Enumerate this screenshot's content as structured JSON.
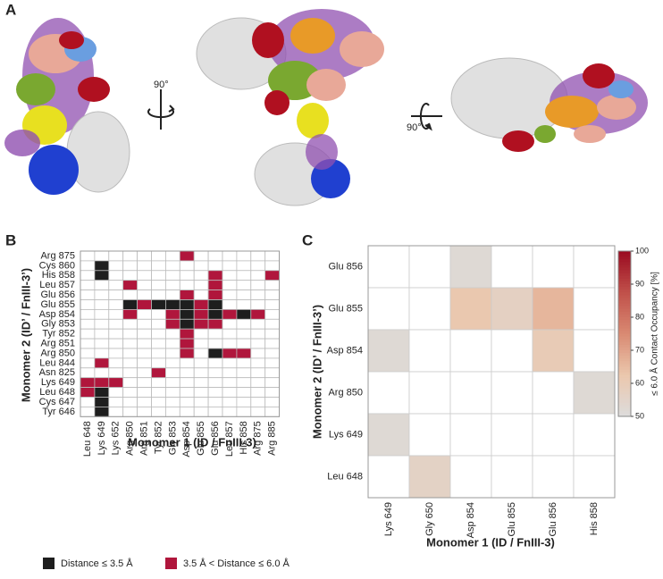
{
  "panel_labels": [
    "A",
    "B",
    "C"
  ],
  "rotation_labels": [
    "90°",
    "90°"
  ],
  "chart_data": [
    {
      "type": "heatmap",
      "x_label": "Monomer 1 (ID / FnIII-3)",
      "y_label": "Monomer 2 (ID’ / FnIII-3’)",
      "x_categories": [
        "Leu 648",
        "Lys 649",
        "Lys 652",
        "Arg 850",
        "Arg 851",
        "Tyr 852",
        "Gly 853",
        "Asp 854",
        "Glu 855",
        "Glu 856",
        "Leu 857",
        "His 858",
        "Arg 875",
        "Arg 885"
      ],
      "y_categories": [
        "Arg 875",
        "Cys 860",
        "His 858",
        "Leu 857",
        "Glu 856",
        "Glu 855",
        "Asp 854",
        "Gly 853",
        "Tyr 852",
        "Arg 851",
        "Arg 850",
        "Leu 844",
        "Asn 825",
        "Lys 649",
        "Leu 648",
        "Cys 647",
        "Tyr 646"
      ],
      "levels": [
        {
          "value": 1,
          "label": "Distance ≤ 3.5 Å",
          "color": "#1e1e1e"
        },
        {
          "value": 2,
          "label": "3.5 Å < Distance ≤ 6.0 Å",
          "color": "#b0163c"
        }
      ],
      "values": [
        [
          0,
          0,
          0,
          0,
          0,
          0,
          0,
          2,
          0,
          0,
          0,
          0,
          0,
          0
        ],
        [
          0,
          1,
          0,
          0,
          0,
          0,
          0,
          0,
          0,
          0,
          0,
          0,
          0,
          0
        ],
        [
          0,
          1,
          0,
          0,
          0,
          0,
          0,
          0,
          0,
          2,
          0,
          0,
          0,
          2
        ],
        [
          0,
          0,
          0,
          2,
          0,
          0,
          0,
          0,
          0,
          2,
          0,
          0,
          0,
          0
        ],
        [
          0,
          0,
          0,
          0,
          0,
          0,
          0,
          2,
          0,
          2,
          0,
          0,
          0,
          0
        ],
        [
          0,
          0,
          0,
          1,
          2,
          1,
          1,
          1,
          2,
          1,
          0,
          0,
          0,
          0
        ],
        [
          0,
          0,
          0,
          2,
          0,
          0,
          2,
          1,
          2,
          1,
          2,
          1,
          2,
          0
        ],
        [
          0,
          0,
          0,
          0,
          0,
          0,
          2,
          1,
          2,
          2,
          0,
          0,
          0,
          0
        ],
        [
          0,
          0,
          0,
          0,
          0,
          0,
          0,
          2,
          0,
          0,
          0,
          0,
          0,
          0
        ],
        [
          0,
          0,
          0,
          0,
          0,
          0,
          0,
          2,
          0,
          0,
          0,
          0,
          0,
          0
        ],
        [
          0,
          0,
          0,
          0,
          0,
          0,
          0,
          2,
          0,
          1,
          2,
          2,
          0,
          0
        ],
        [
          0,
          2,
          0,
          0,
          0,
          0,
          0,
          0,
          0,
          0,
          0,
          0,
          0,
          0
        ],
        [
          0,
          0,
          0,
          0,
          0,
          2,
          0,
          0,
          0,
          0,
          0,
          0,
          0,
          0
        ],
        [
          2,
          2,
          2,
          0,
          0,
          0,
          0,
          0,
          0,
          0,
          0,
          0,
          0,
          0
        ],
        [
          2,
          1,
          0,
          0,
          0,
          0,
          0,
          0,
          0,
          0,
          0,
          0,
          0,
          0
        ],
        [
          0,
          1,
          0,
          0,
          0,
          0,
          0,
          0,
          0,
          0,
          0,
          0,
          0,
          0
        ],
        [
          0,
          1,
          0,
          0,
          0,
          0,
          0,
          0,
          0,
          0,
          0,
          0,
          0,
          0
        ]
      ]
    },
    {
      "type": "heatmap",
      "x_label": "Monomer 1 (ID / FnIII-3)",
      "y_label": "Monomer 2 (ID’ / FnIII-3’)",
      "colorbar_label": "≤ 6.0 Å Contact Occupancy [%]",
      "x_categories": [
        "Lys 649",
        "Gly 650",
        "Asp 854",
        "Glu 855",
        "Glu 856",
        "His 858"
      ],
      "y_categories": [
        "Glu 856",
        "Glu 855",
        "Asp 854",
        "Arg 850",
        "Lys 649",
        "Leu 648"
      ],
      "clim": [
        50,
        100
      ],
      "cticks": [
        50,
        60,
        70,
        80,
        90,
        100
      ],
      "colormap": [
        "#dcdcdc",
        "#ebc7ad",
        "#d98a72",
        "#c0504a",
        "#9a0a20"
      ],
      "values": [
        [
          null,
          null,
          52,
          null,
          null,
          null
        ],
        [
          null,
          null,
          62,
          57,
          66,
          null
        ],
        [
          52,
          null,
          null,
          null,
          60,
          null
        ],
        [
          null,
          null,
          null,
          null,
          null,
          52
        ],
        [
          52,
          null,
          null,
          null,
          null,
          null
        ],
        [
          null,
          56,
          null,
          null,
          null,
          null
        ]
      ]
    }
  ]
}
